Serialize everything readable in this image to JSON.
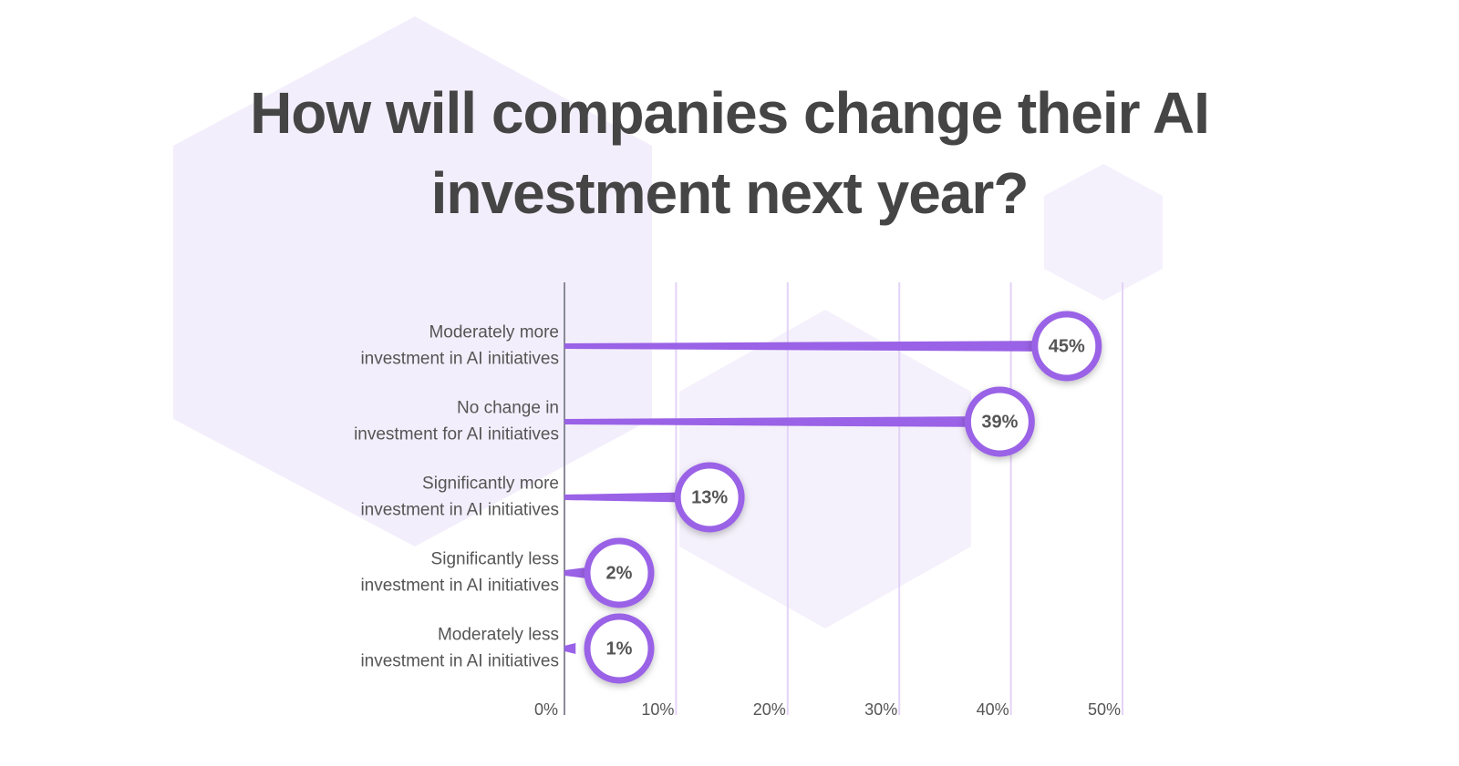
{
  "chart_data": {
    "type": "lollipop",
    "title": "How will companies change their AI investment next year?",
    "categories": [
      [
        "Moderately more",
        "investment in AI initiatives"
      ],
      [
        "No change in",
        "investment for AI initiatives"
      ],
      [
        "Significantly more",
        "investment in AI initiatives"
      ],
      [
        "Significantly less",
        "investment in AI initiatives"
      ],
      [
        "Moderately less",
        "investment in AI initiatives"
      ]
    ],
    "values": [
      45,
      39,
      13,
      2,
      1
    ],
    "value_labels": [
      "45%",
      "39%",
      "13%",
      "2%",
      "1%"
    ],
    "color": "#9a62e6",
    "xlim": [
      0,
      50
    ],
    "xticks": [
      {
        "value": 0,
        "label": "0%"
      },
      {
        "value": 10,
        "label": "10%"
      },
      {
        "value": 20,
        "label": "20%"
      },
      {
        "value": 30,
        "label": "30%"
      },
      {
        "value": 40,
        "label": "40%"
      },
      {
        "value": 50,
        "label": "50%"
      }
    ],
    "grid": true
  }
}
